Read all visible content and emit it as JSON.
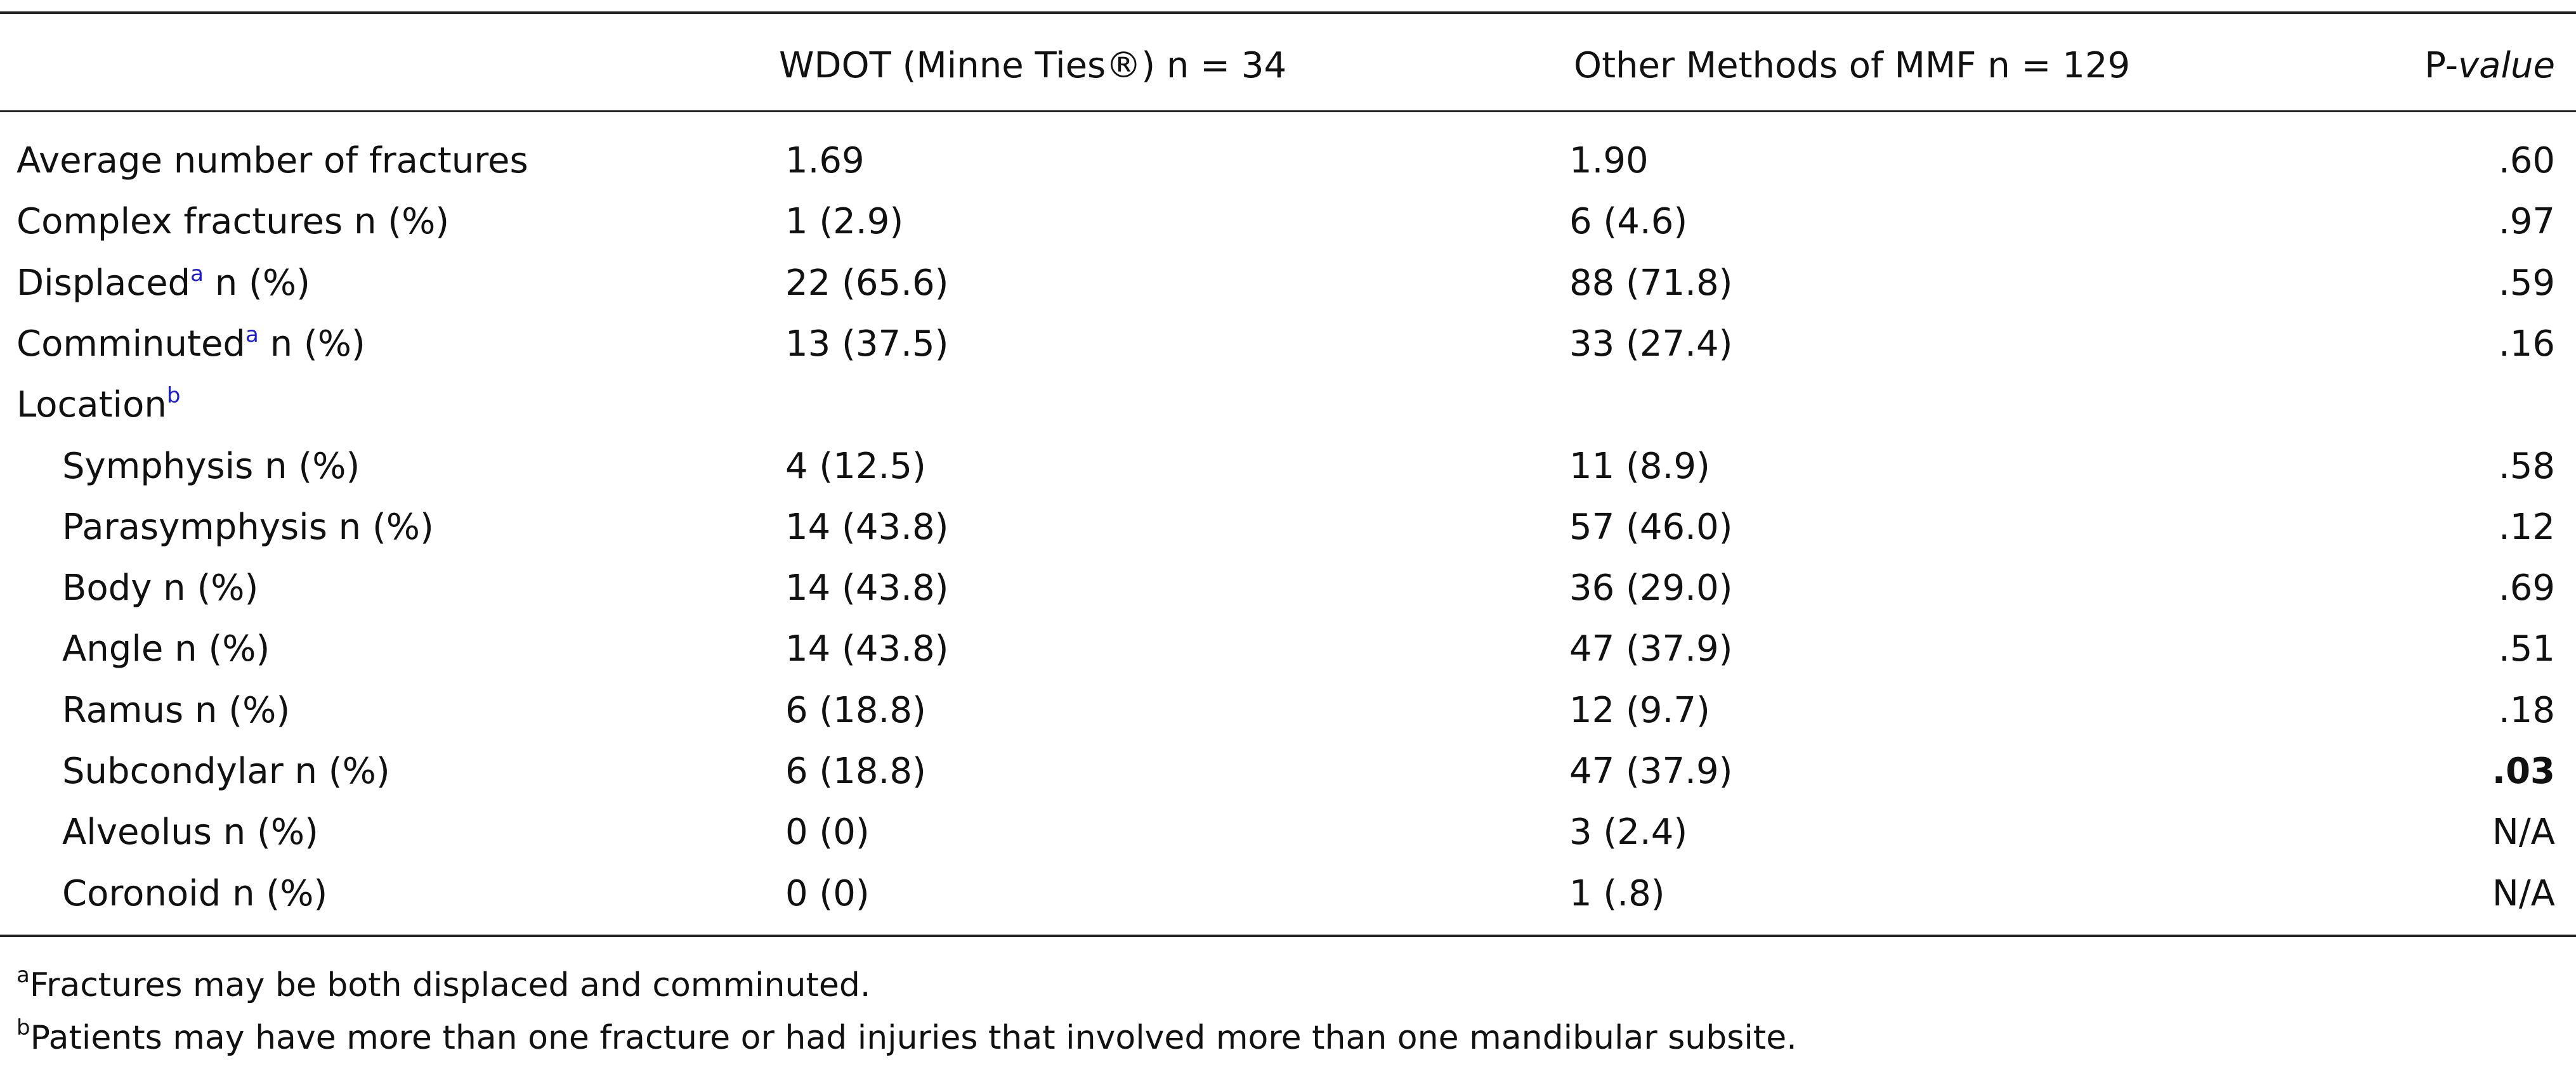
{
  "table": {
    "header": {
      "col1": "WDOT (Minne Ties®) n = 34",
      "col2": "Other Methods of MMF n = 129",
      "pvalue_prefix": "P-",
      "pvalue_italic": "value"
    },
    "rows": [
      {
        "label": "Average number of fractures",
        "col1": "1.69",
        "col2": "1.90",
        "p": ".60"
      },
      {
        "label": "Complex fractures n (%)",
        "col1": "1 (2.9)",
        "col2": "6 (4.6)",
        "p": ".97"
      },
      {
        "label": "Displaced",
        "sup": "a",
        "label_after": "n (%)",
        "col1": "22 (65.6)",
        "col2": "88 (71.8)",
        "p": ".59"
      },
      {
        "label": "Comminuted",
        "sup": "a",
        "label_after": "n (%)",
        "col1": "13 (37.5)",
        "col2": "33 (27.4)",
        "p": ".16"
      },
      {
        "label": "Location",
        "sup": "b",
        "subrows": [
          {
            "label": "Symphysis n (%)",
            "col1": "4 (12.5)",
            "col2": "11 (8.9)",
            "p": ".58"
          },
          {
            "label": "Parasymphysis n (%)",
            "col1": "14 (43.8)",
            "col2": "57 (46.0)",
            "p": ".12"
          },
          {
            "label": "Body n (%)",
            "col1": "14 (43.8)",
            "col2": "36 (29.0)",
            "p": ".69"
          },
          {
            "label": "Angle n (%)",
            "col1": "14 (43.8)",
            "col2": "47 (37.9)",
            "p": ".51"
          },
          {
            "label": "Ramus n (%)",
            "col1": "6 (18.8)",
            "col2": "12 (9.7)",
            "p": ".18"
          },
          {
            "label": "Subcondylar n (%)",
            "col1": "6 (18.8)",
            "col2": "47 (37.9)",
            "p": ".03",
            "bold": true
          },
          {
            "label": "Alveolus n (%)",
            "col1": "0 (0)",
            "col2": "3 (2.4)",
            "p": "N/A"
          },
          {
            "label": "Coronoid n (%)",
            "col1": "0 (0)",
            "col2": "1 (.8)",
            "p": "N/A"
          }
        ]
      }
    ],
    "footnotes": [
      {
        "mark": "a",
        "text": "Fractures may be both displaced and comminuted."
      },
      {
        "mark": "b",
        "text": "Patients may have more than one fracture or had injuries that involved more than one mandibular subsite."
      }
    ]
  }
}
